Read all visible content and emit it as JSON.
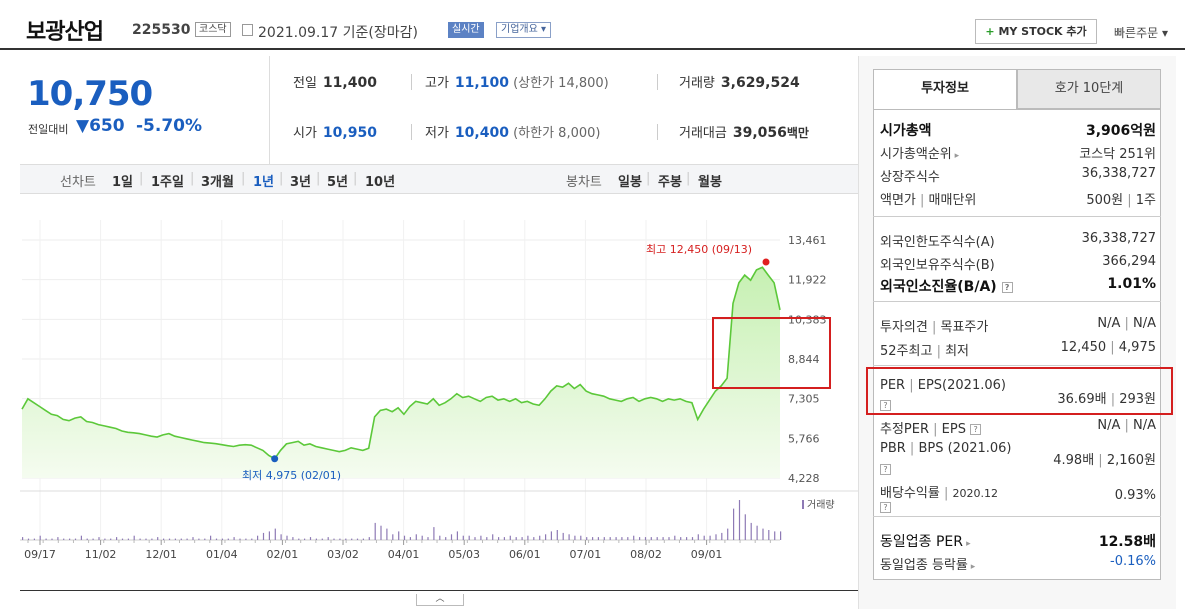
{
  "header": {
    "company_name": "보광산업",
    "code": "225530",
    "market": "코스닥",
    "date": "2021.09.17 기준(장마감)",
    "live_label": "실시간",
    "corp_label": "기업개요 ▾",
    "mystock_plus": "+",
    "mystock_label": "MY STOCK 추가",
    "quick_order": "빠른주문 ▾"
  },
  "price": {
    "current": "10,750",
    "change_label": "전일대비",
    "change_value": "▼650",
    "change_pct": "-5.70%"
  },
  "stats": {
    "prev_label": "전일",
    "prev": "11,400",
    "high_label": "고가",
    "high": "11,100",
    "upper_limit": "(상한가 14,800)",
    "volume_label": "거래량",
    "volume": "3,629,524",
    "open_label": "시가",
    "open": "10,950",
    "low_label": "저가",
    "low": "10,400",
    "lower_limit": "(하한가 8,000)",
    "amount_label": "거래대금",
    "amount": "39,056",
    "amount_unit": "백만"
  },
  "toolbar": {
    "line_label": "선차트",
    "line_periods": [
      "1일",
      "1주일",
      "3개월",
      "1년",
      "3년",
      "5년",
      "10년"
    ],
    "selected_period": "1년",
    "candle_label": "봉차트",
    "candle_periods": [
      "일봉",
      "주봉",
      "월봉"
    ]
  },
  "chart_data": {
    "type": "area",
    "y_ticks": [
      "13,461",
      "11,922",
      "10,383",
      "8,844",
      "7,305",
      "5,766",
      "4,228"
    ],
    "ylim": [
      4228,
      13461
    ],
    "x_ticks": [
      "09/17",
      "11/02",
      "12/01",
      "01/04",
      "02/01",
      "03/02",
      "04/01",
      "05/03",
      "06/01",
      "07/01",
      "08/02",
      "09/01"
    ],
    "high_annotation": "최고 12,450 (09/13)",
    "low_annotation": "최저 4,975 (02/01)",
    "volume_legend": "거래량",
    "series": [
      {
        "values": [
          6900,
          7300,
          7150,
          7000,
          6850,
          6700,
          6650,
          6500,
          6450,
          6550,
          6600,
          6420,
          6380,
          6300,
          6250,
          6200,
          6150,
          6050,
          6000,
          5980,
          5950,
          5900,
          5850,
          5820,
          5900,
          5950,
          5850,
          5800,
          5750,
          5700,
          5650,
          5600,
          5580,
          5560,
          5520,
          5480,
          5450,
          5500,
          5520,
          5500,
          5400,
          5300,
          5100,
          4975,
          5300,
          5550,
          5600,
          5650,
          5500,
          5550,
          5450,
          5400,
          5350,
          5300,
          5250,
          5300,
          5400,
          5350,
          5300,
          5380,
          6600,
          6850,
          6900,
          6800,
          6950,
          6700,
          7000,
          7200,
          7150,
          7100,
          7300,
          7050,
          7150,
          7300,
          7500,
          7350,
          7400,
          7300,
          7200,
          7350,
          7400,
          7250,
          7300,
          7200,
          7300,
          7150,
          7200,
          7100,
          7050,
          7300,
          7600,
          7800,
          7750,
          7900,
          7700,
          7850,
          7600,
          7500,
          7450,
          7400,
          7300,
          7250,
          7200,
          7300,
          7350,
          7200,
          7300,
          7350,
          7300,
          7200,
          7300,
          7250,
          7300,
          7200,
          7150,
          6500,
          6900,
          7250,
          7600,
          7800,
          8100,
          11000,
          11800,
          12100,
          11900,
          12300,
          12400,
          12100,
          11800,
          10750
        ]
      }
    ],
    "volume": [
      2,
      1,
      1,
      3,
      1,
      1,
      2,
      1,
      1,
      1,
      3,
      1,
      1,
      2,
      1,
      1,
      2,
      1,
      1,
      3,
      1,
      1,
      1,
      2,
      1,
      1,
      1,
      1,
      1,
      2,
      1,
      1,
      3,
      1,
      1,
      1,
      2,
      1,
      1,
      1,
      3,
      5,
      6,
      8,
      4,
      3,
      2,
      1,
      1,
      2,
      1,
      1,
      2,
      1,
      1,
      1,
      1,
      1,
      1,
      2,
      12,
      10,
      8,
      4,
      6,
      3,
      2,
      4,
      3,
      2,
      9,
      3,
      2,
      4,
      6,
      3,
      3,
      2,
      3,
      2,
      4,
      2,
      2,
      3,
      2,
      2,
      3,
      2,
      3,
      4,
      6,
      7,
      5,
      4,
      3,
      3,
      2,
      2,
      2,
      2,
      2,
      2,
      2,
      2,
      3,
      2,
      2,
      2,
      2,
      2,
      2,
      3,
      2,
      2,
      2,
      4,
      3,
      3,
      4,
      5,
      8,
      22,
      28,
      18,
      12,
      10,
      8,
      7,
      6,
      6
    ]
  },
  "info": {
    "tab_active": "투자정보",
    "tab_other": "호가 10단계",
    "market_cap_label": "시가총액",
    "market_cap": "3,906억원",
    "market_cap_rank_label": "시가총액순위",
    "market_cap_rank": "코스닥 251위",
    "shares_label": "상장주식수",
    "shares": "36,338,727",
    "par_label": "액면가",
    "lot_label": "매매단위",
    "par": "500원",
    "lot": "1주",
    "foreign_limit_label": "외국인한도주식수(A)",
    "foreign_limit": "36,338,727",
    "foreign_hold_label": "외국인보유주식수(B)",
    "foreign_hold": "366,294",
    "foreign_ratio_label": "외국인소진율(B/A)",
    "foreign_ratio": "1.01%",
    "opinion_label": "투자의견",
    "target_label": "목표주가",
    "opinion": "N/A",
    "target": "N/A",
    "w52_label": "52주최고",
    "w52_low_label": "최저",
    "w52_high": "12,450",
    "w52_low": "4,975",
    "per_label": "PER",
    "eps_label": "EPS(2021.06)",
    "per": "36.69배",
    "eps": "293원",
    "est_per_label": "추정PER",
    "est_eps_label": "EPS",
    "est_per": "N/A",
    "est_eps": "N/A",
    "pbr_label": "PBR",
    "bps_label": "BPS (2021.06)",
    "pbr": "4.98배",
    "bps": "2,160원",
    "div_label": "배당수익률",
    "div_date": "2020.12",
    "div": "0.93%",
    "sector_per_label": "동일업종 PER",
    "sector_per": "12.58배",
    "sector_chg_label": "동일업종 등락률",
    "sector_chg": "-0.16%"
  },
  "colors": {
    "accent": "#1a5ebf",
    "line": "#5cc83a",
    "area": "#dcf7cf",
    "highlight": "#d41f1f",
    "volume": "#8e7ab5"
  }
}
